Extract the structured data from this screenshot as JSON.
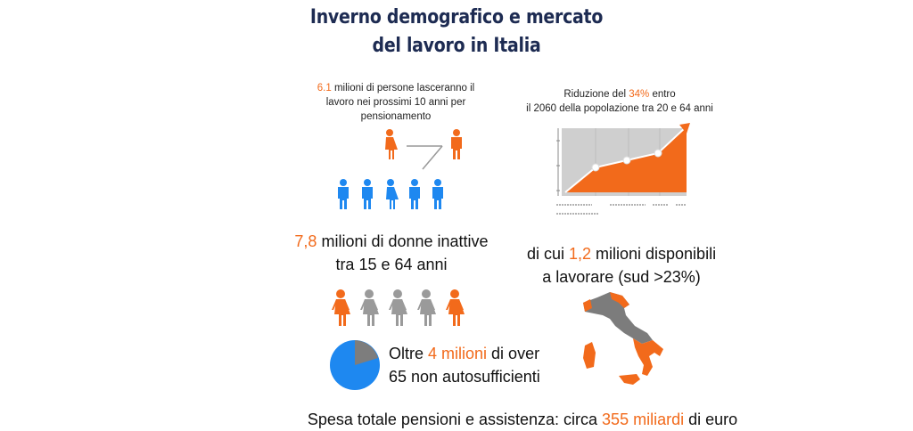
{
  "title": {
    "line1": "Inverno demografico e mercato",
    "line2": "del lavoro in Italia"
  },
  "retire": {
    "value": "6.1",
    "line1_rest": " milioni di persone lasceranno il",
    "line2": "lavoro nei prossimi 10 anni per",
    "line3": "pensionamento"
  },
  "reduction": {
    "pre": "Riduzione del ",
    "value": "34%",
    "post": " entro",
    "line2": "il 2060 della popolazione tra 20 e 64 anni"
  },
  "women": {
    "value": "7,8",
    "line1_rest": " milioni di donne inattive",
    "line2": "tra 15 e 64 anni"
  },
  "available": {
    "pre": "di cui ",
    "value": "1,2",
    "post": " milioni disponibili",
    "line2": "a lavorare (sud >23%)"
  },
  "elderly": {
    "pre": "Oltre ",
    "value": "4 milioni",
    "post": " di over",
    "line2": "65 non autosufficienti"
  },
  "spending": {
    "pre": "Spesa totale pensioni e assistenza: circa ",
    "value": "355 miliardi",
    "post": " di euro"
  },
  "colors": {
    "orange": "#f26a1b",
    "blue": "#1e88f0",
    "gray": "#9a9a9a",
    "navy": "#1d2b52"
  },
  "icons": {
    "people": "person-icon",
    "map": "italy-map-icon",
    "pie": "pie-chart-icon",
    "trend": "area-chart-icon"
  }
}
